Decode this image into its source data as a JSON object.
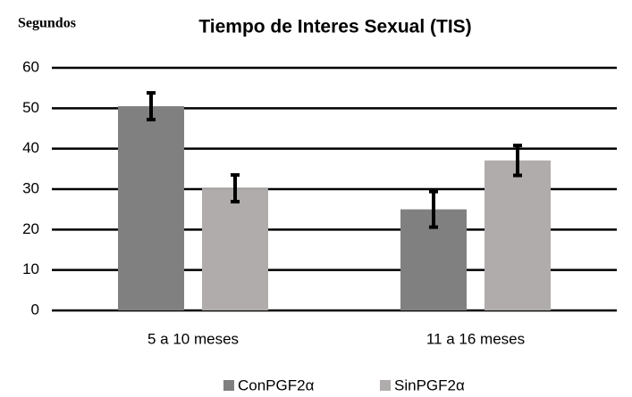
{
  "chart_data": {
    "type": "bar",
    "title": "Tiempo de Interes Sexual (TIS)",
    "y_label": "Segundos",
    "categories": [
      "5 a 10 meses",
      "11 a 16 meses"
    ],
    "series": [
      {
        "name": "ConPGF2α",
        "color": "#808080",
        "values": [
          50.5,
          25
        ],
        "errors": [
          3.3,
          4.4
        ]
      },
      {
        "name": "SinPGF2α",
        "color": "#b0acab",
        "values": [
          30.2,
          37.1
        ],
        "errors": [
          3.3,
          3.7
        ]
      }
    ],
    "ylim": [
      0,
      60
    ],
    "yticks": [
      0,
      10,
      20,
      30,
      40,
      50,
      60
    ],
    "grid": true,
    "legend": "bottom"
  }
}
